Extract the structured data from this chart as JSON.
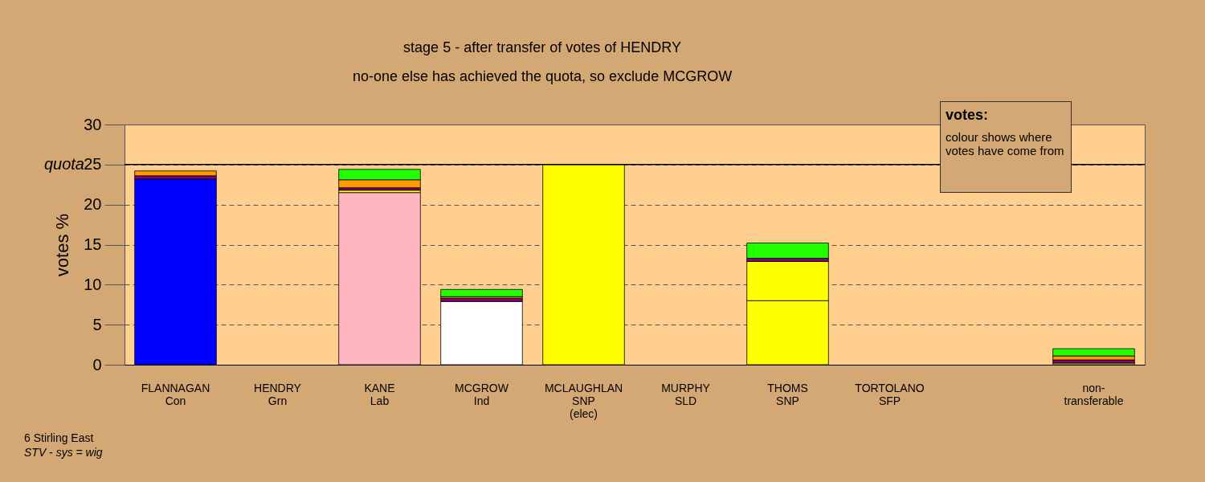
{
  "chart_data": {
    "type": "bar",
    "stacked": true,
    "title": "stage 5 - after transfer of votes of HENDRY",
    "subtitle": "no-one else has achieved the quota, so exclude MCGROW",
    "ylabel": "votes %",
    "categories": [
      "FLANNAGAN\nCon",
      "HENDRY\nGrn",
      "KANE\nLab",
      "MCGROW\nInd",
      "MCLAUGHLAN\nSNP\n(elec)",
      "MURPHY\nSLD",
      "THOMS\nSNP",
      "TORTOLANO\nSFP",
      null,
      "non-\ntransferable"
    ],
    "series": [
      {
        "color": "#0000ff",
        "values": [
          23.2,
          null,
          null,
          null,
          null,
          null,
          null,
          null,
          null,
          null
        ]
      },
      {
        "color": "#ffb6c1",
        "values": [
          null,
          null,
          21.5,
          null,
          null,
          null,
          null,
          null,
          null,
          null
        ]
      },
      {
        "color": "#ffffff",
        "values": [
          null,
          null,
          null,
          7.9,
          null,
          null,
          null,
          null,
          null,
          null
        ]
      },
      {
        "color": "#ffff00",
        "values": [
          null,
          null,
          null,
          null,
          25,
          null,
          8,
          null,
          null,
          null
        ]
      },
      {
        "color": "#ffff00",
        "values": [
          null,
          null,
          0.3,
          null,
          null,
          null,
          4.9,
          null,
          null,
          0.2
        ]
      },
      {
        "color": "#800080",
        "values": [
          0.4,
          null,
          0.3,
          0.4,
          null,
          null,
          0.4,
          null,
          null,
          0.4
        ]
      },
      {
        "color": "#ff9900",
        "values": [
          0.6,
          null,
          1.0,
          0.2,
          null,
          null,
          null,
          null,
          null,
          0.5
        ]
      },
      {
        "color": "#22ff00",
        "values": [
          null,
          null,
          1.3,
          0.9,
          null,
          null,
          1.9,
          null,
          null,
          0.9
        ]
      }
    ],
    "ylim": [
      0,
      30
    ],
    "yticks": [
      0,
      5,
      10,
      15,
      20,
      25,
      30
    ],
    "grid": "y",
    "legend": false,
    "ref_lines": [
      {
        "axis": "y",
        "value": 25,
        "label": "quota"
      }
    ],
    "annotations": [
      "6 Stirling East",
      "STV - sys = wig",
      "votes:",
      "colour shows where votes have come from"
    ]
  }
}
